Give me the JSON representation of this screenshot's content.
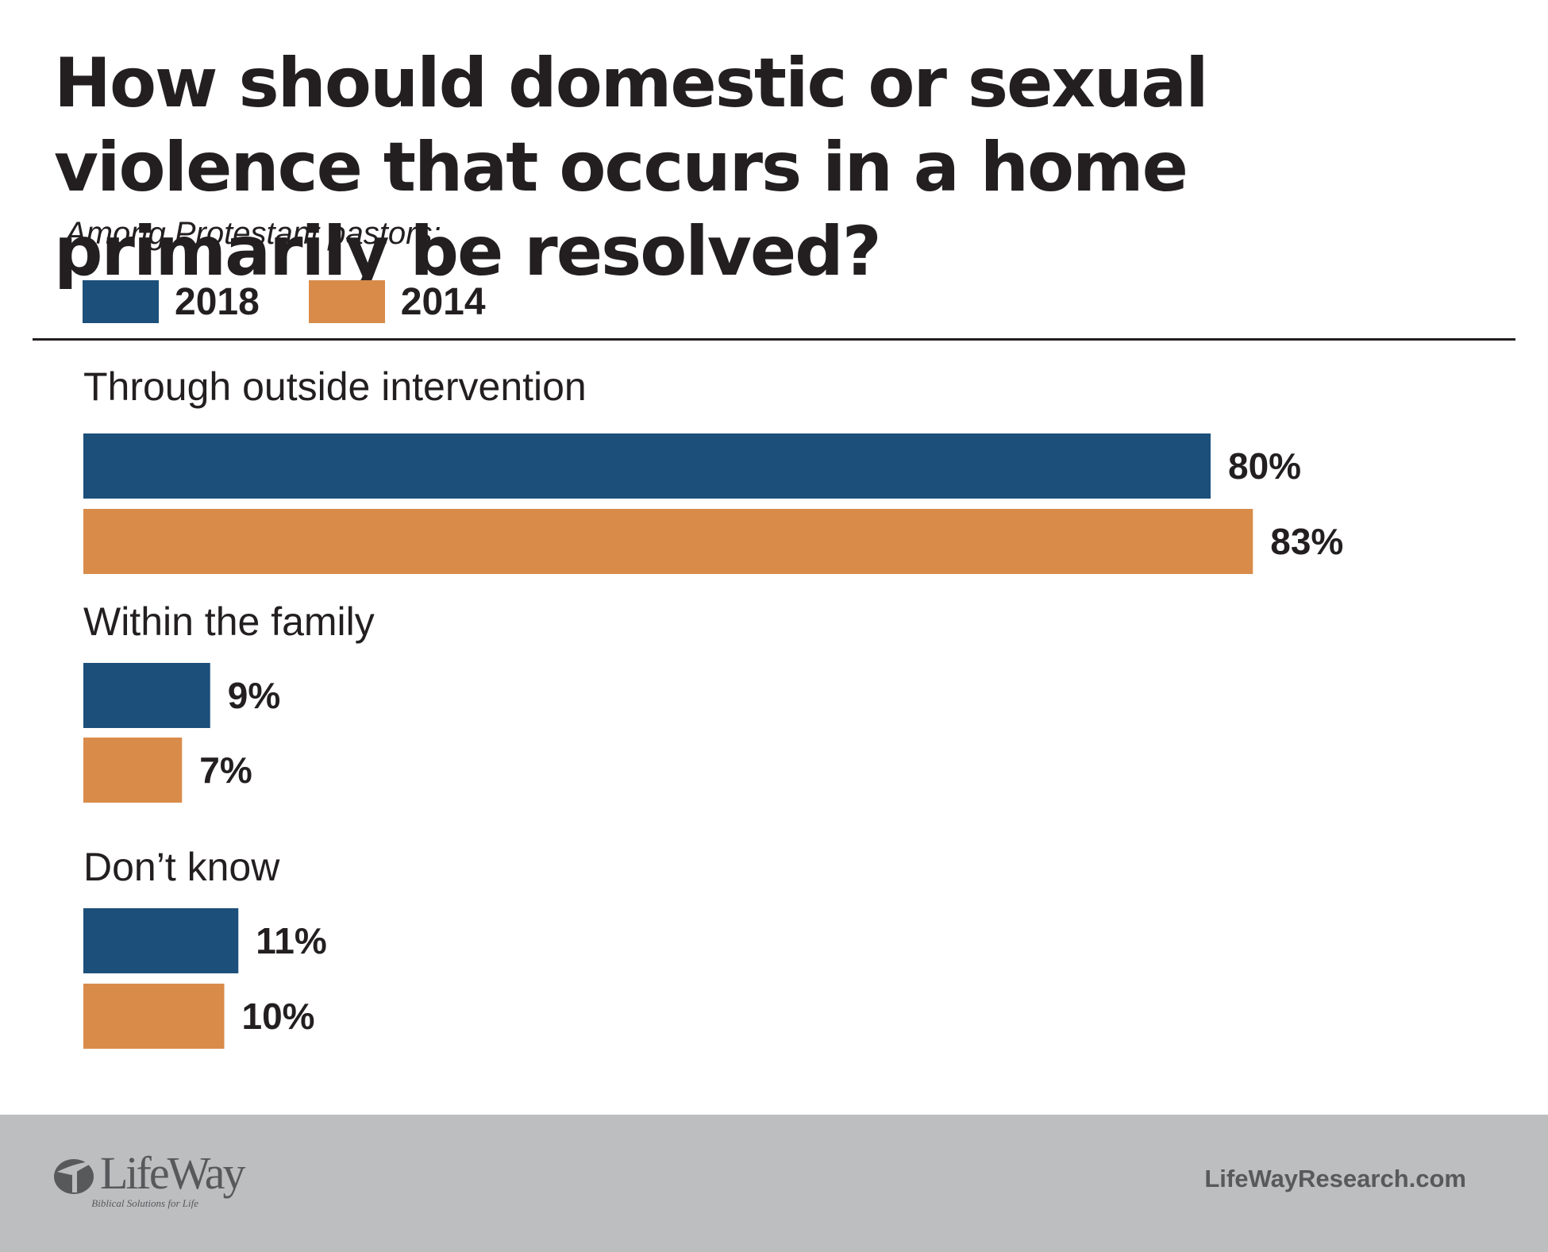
{
  "header": {
    "title": "How should domestic or sexual violence that occurs in a home primarily be resolved?",
    "subtitle": "Among Protestant pastors:"
  },
  "legend": [
    {
      "label": "2018",
      "color": "#1c4f7a"
    },
    {
      "label": "2014",
      "color": "#d98b4a"
    }
  ],
  "chart_data": {
    "type": "bar",
    "orientation": "horizontal",
    "title": "How should domestic or sexual violence that occurs in a home primarily be resolved?",
    "subtitle": "Among Protestant pastors:",
    "categories": [
      "Through outside intervention",
      "Within the family",
      "Don’t know"
    ],
    "series": [
      {
        "name": "2018",
        "color": "#1c4f7a",
        "values": [
          80,
          9,
          11
        ],
        "labels": [
          "80%",
          "9%",
          "11%"
        ]
      },
      {
        "name": "2014",
        "color": "#d98b4a",
        "values": [
          83,
          7,
          10
        ],
        "labels": [
          "83%",
          "7%",
          "10%"
        ]
      }
    ],
    "xlim": [
      0,
      100
    ],
    "unit": "%",
    "legend_position": "top-left",
    "grid": false
  },
  "footer": {
    "logo_text": "LifeWay",
    "logo_tagline": "Biblical Solutions for Life",
    "website": "LifeWayResearch.com",
    "background": "#bcbec0"
  }
}
